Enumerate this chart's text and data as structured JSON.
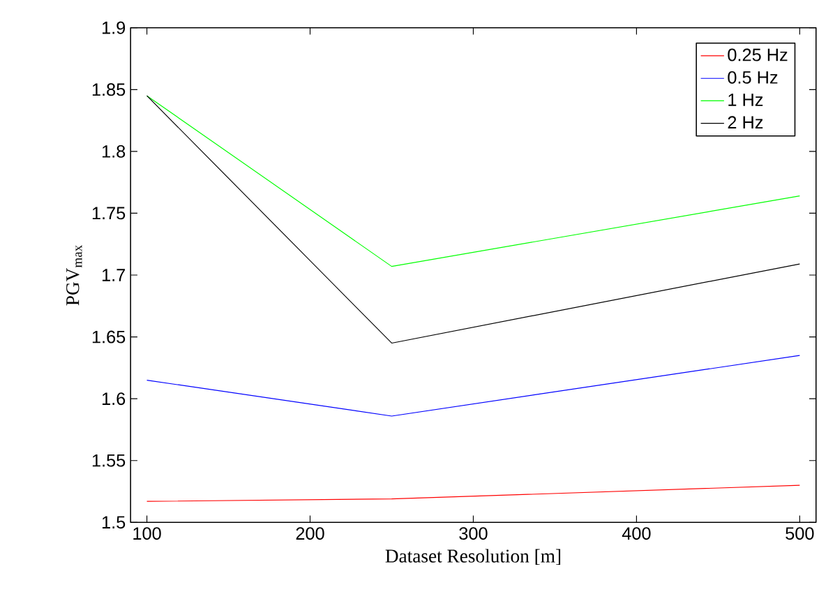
{
  "chart_data": {
    "type": "line",
    "xlabel": "Dataset Resolution [m]",
    "ylabel": "PGV$_{max}$",
    "x": [
      100,
      250,
      500
    ],
    "series": [
      {
        "name": "0.25 Hz",
        "color": "#ff0000",
        "values": [
          1.517,
          1.519,
          1.53
        ]
      },
      {
        "name": "0.5 Hz",
        "color": "#0000ff",
        "values": [
          1.615,
          1.586,
          1.635
        ]
      },
      {
        "name": "1 Hz",
        "color": "#00ff00",
        "values": [
          1.845,
          1.707,
          1.764
        ]
      },
      {
        "name": "2 Hz",
        "color": "#000000",
        "values": [
          1.845,
          1.645,
          1.709
        ]
      }
    ],
    "xlim": [
      90,
      510
    ],
    "ylim": [
      1.5,
      1.9
    ],
    "xticks": [
      100,
      200,
      300,
      400,
      500
    ],
    "yticks": [
      1.5,
      1.55,
      1.6,
      1.65,
      1.7,
      1.75,
      1.8,
      1.85,
      1.9
    ],
    "legend": "top right",
    "line_style": "solid",
    "marker": "none"
  }
}
